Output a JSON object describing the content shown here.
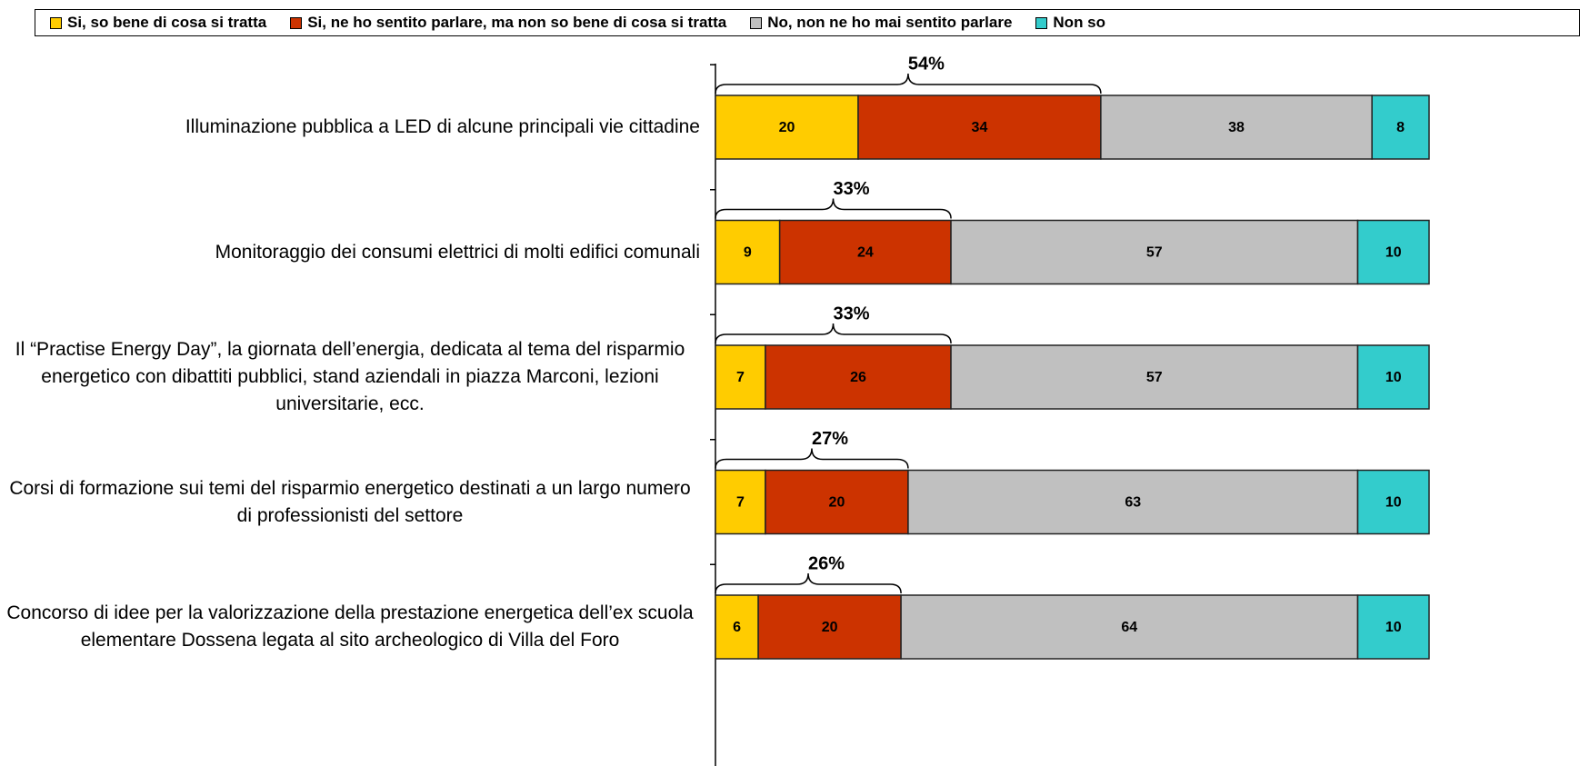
{
  "chart_data": {
    "type": "stacked-bar-horizontal",
    "categories": [
      "Illuminazione pubblica a LED di alcune principali vie cittadine",
      "Monitoraggio dei consumi elettrici di molti edifici comunali",
      "Il “Practise Energy Day”, la giornata dell’energia, dedicata al tema del risparmio energetico con dibattiti pubblici, stand aziendali in piazza Marconi, lezioni universitarie, ecc.",
      "Corsi di formazione sui temi del risparmio energetico destinati a un largo numero di professionisti del settore",
      "Concorso di idee per la valorizzazione della prestazione energetica dell’ex scuola elementare Dossena legata al sito archeologico di Villa del Foro"
    ],
    "series": [
      {
        "name": "Si, so bene di cosa si tratta",
        "color": "#FFCC00",
        "values": [
          20,
          9,
          7,
          7,
          6
        ]
      },
      {
        "name": "Si, ne ho sentito parlare, ma non so bene di cosa si tratta",
        "color": "#CC3300",
        "values": [
          34,
          24,
          26,
          20,
          20
        ]
      },
      {
        "name": "No, non ne ho mai sentito parlare",
        "color": "#C0C0C0",
        "values": [
          38,
          57,
          57,
          63,
          64
        ]
      },
      {
        "name": "Non so",
        "color": "#33CCCC",
        "values": [
          8,
          10,
          10,
          10,
          10
        ]
      }
    ],
    "brackets": {
      "values": [
        54,
        33,
        33,
        27,
        26
      ],
      "value_labels": [
        "54%",
        "33%",
        "33%",
        "27%",
        "26%"
      ]
    },
    "xlim": [
      0,
      100
    ]
  }
}
